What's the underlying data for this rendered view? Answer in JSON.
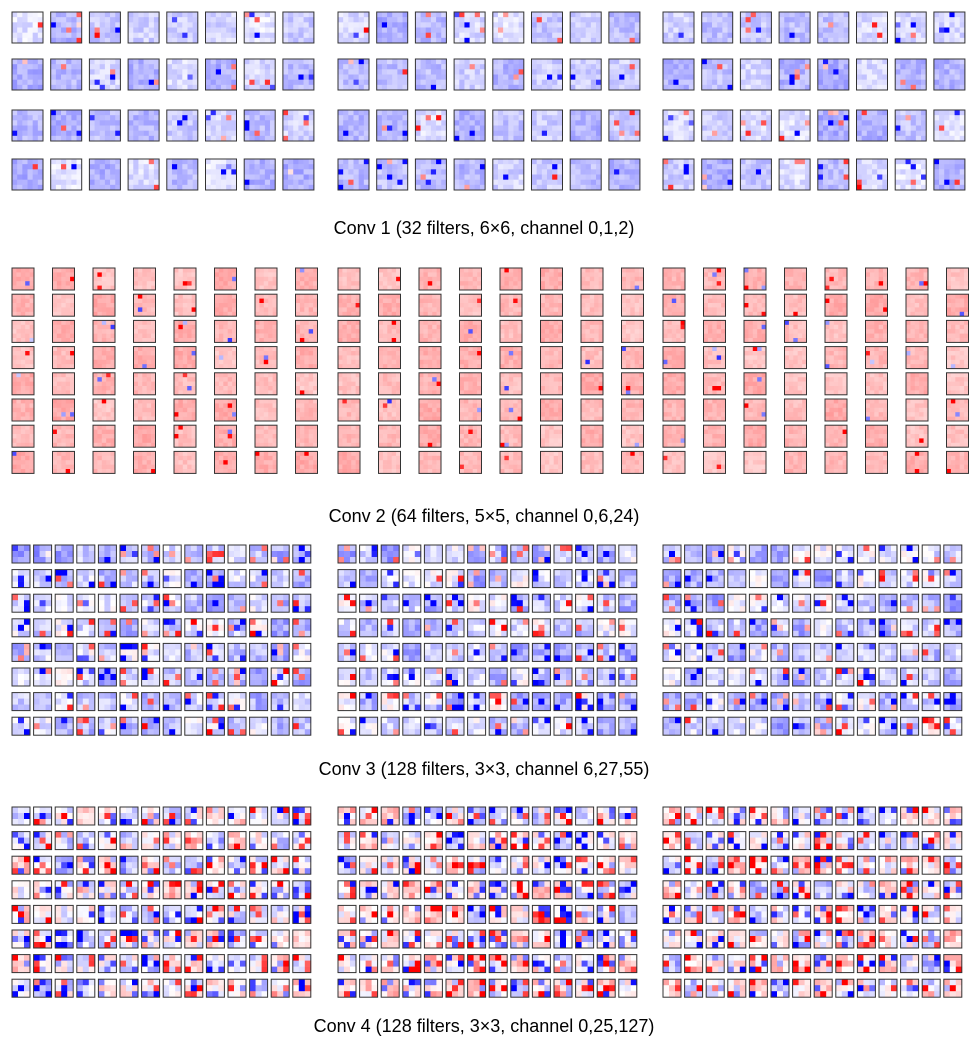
{
  "figure": {
    "panels": [
      {
        "caption": "Conv 1 (32 filters, 6×6, channel 0,1,2)"
      },
      {
        "caption": "Conv 2 (64 filters, 5×5, channel 0,6,24)"
      },
      {
        "caption": "Conv 3 (128 filters, 3×3, channel 6,27,55)"
      },
      {
        "caption": "Conv 4 (128 filters, 3×3, channel 0,25,127)"
      }
    ]
  }
}
